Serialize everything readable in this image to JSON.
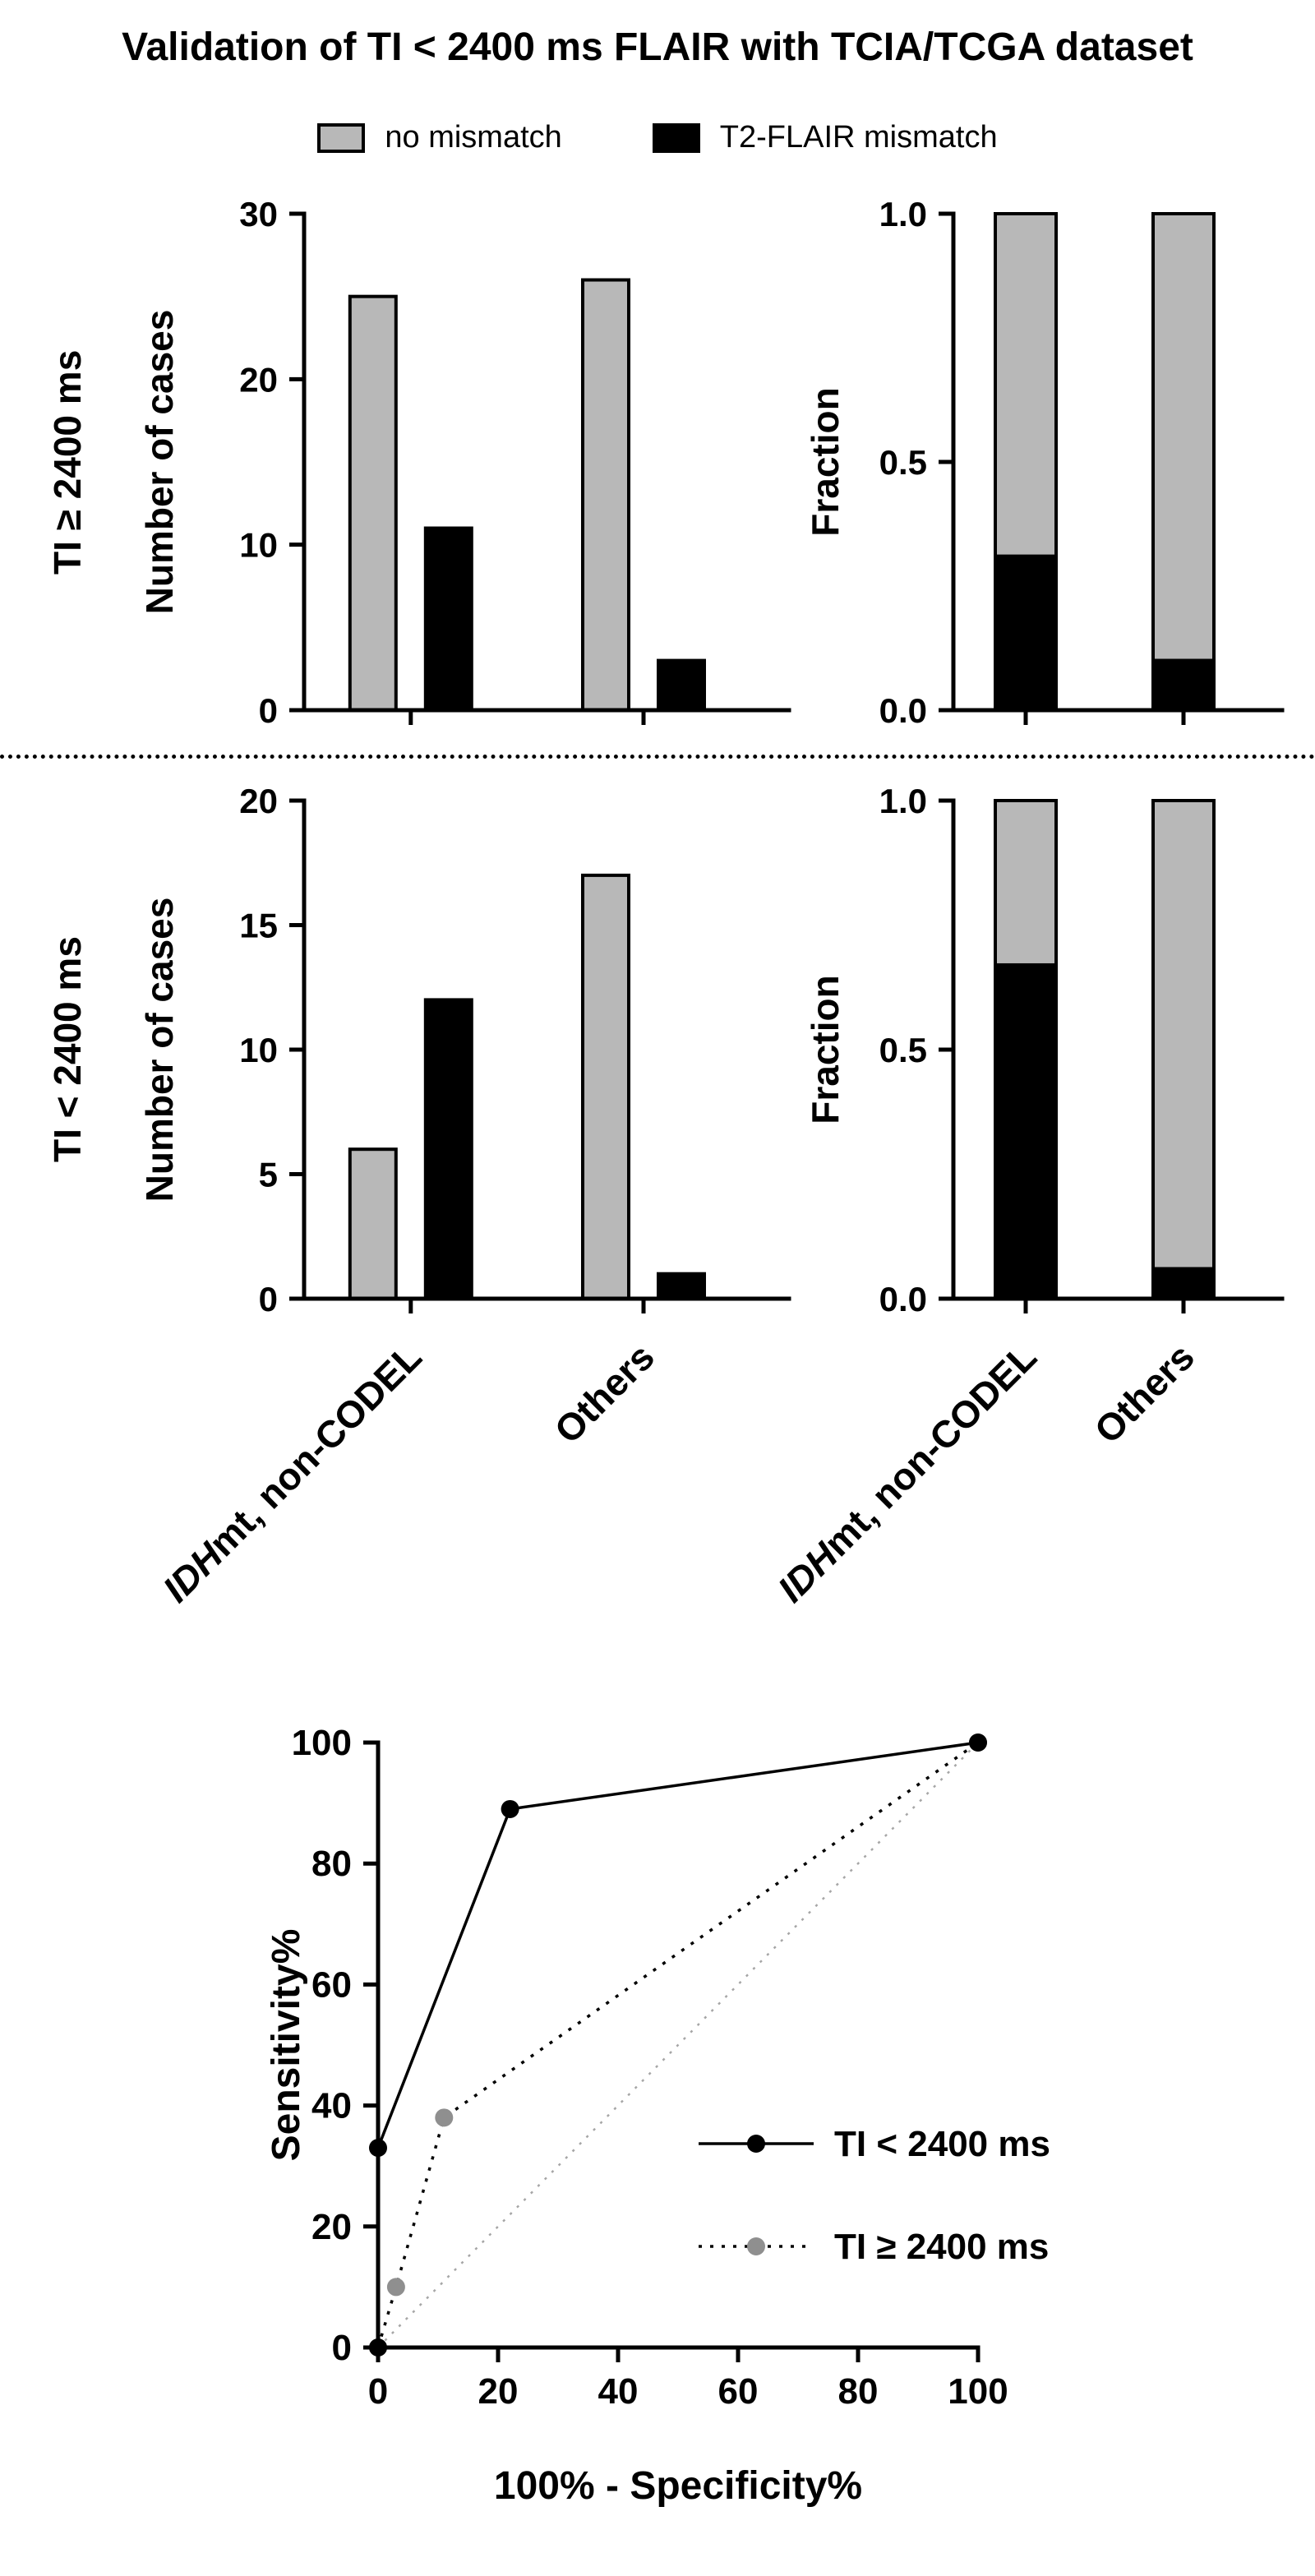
{
  "page": {
    "title": "Validation of TI < 2400 ms FLAIR with TCIA/TCGA dataset",
    "background": "#ffffff"
  },
  "legend": {
    "items": [
      {
        "label": "no mismatch",
        "color": "#b8b8b8"
      },
      {
        "label": "T2-FLAIR mismatch",
        "color": "#000000"
      }
    ]
  },
  "row_labels": [
    {
      "label": "TI ≥ 2400 ms"
    },
    {
      "label": "TI < 2400 ms"
    }
  ],
  "categories": {
    "labels": [
      "IDHmt, non-CODEL",
      "Others"
    ],
    "parts": [
      [
        {
          "text": "IDH",
          "italic": true
        },
        {
          "text": "mt, non-CODEL",
          "italic": false
        }
      ],
      [
        {
          "text": "Others",
          "italic": false
        }
      ]
    ]
  },
  "separator": {
    "style": "dotted"
  },
  "chart_data": [
    {
      "id": "counts-ti-ge-2400",
      "type": "bar",
      "group": "TI ≥ 2400 ms",
      "ylabel": "Number of cases",
      "ylim": [
        0,
        30
      ],
      "yticks": [
        0,
        10,
        20,
        30
      ],
      "categories": [
        "IDHmt, non-CODEL",
        "Others"
      ],
      "series": [
        {
          "name": "no mismatch",
          "color": "#b8b8b8",
          "values": [
            25,
            26
          ]
        },
        {
          "name": "T2-FLAIR mismatch",
          "color": "#000000",
          "values": [
            11,
            3
          ]
        }
      ],
      "grid": false,
      "legend_position": "top"
    },
    {
      "id": "fraction-ti-ge-2400",
      "type": "bar",
      "stacked": true,
      "group": "TI ≥ 2400 ms",
      "ylabel": "Fraction",
      "ylim": [
        0,
        1
      ],
      "yticks": [
        0,
        0.5,
        1
      ],
      "ytick_labels": [
        "0.0",
        "0.5",
        "1.0"
      ],
      "categories": [
        "IDHmt, non-CODEL",
        "Others"
      ],
      "series": [
        {
          "name": "T2-FLAIR mismatch",
          "color": "#000000",
          "values": [
            0.31,
            0.1
          ]
        },
        {
          "name": "no mismatch",
          "color": "#b8b8b8",
          "values": [
            0.69,
            0.9
          ]
        }
      ],
      "grid": false
    },
    {
      "id": "counts-ti-lt-2400",
      "type": "bar",
      "group": "TI < 2400 ms",
      "ylabel": "Number of cases",
      "ylim": [
        0,
        20
      ],
      "yticks": [
        0,
        5,
        10,
        15,
        20
      ],
      "categories": [
        "IDHmt, non-CODEL",
        "Others"
      ],
      "series": [
        {
          "name": "no mismatch",
          "color": "#b8b8b8",
          "values": [
            6,
            17
          ]
        },
        {
          "name": "T2-FLAIR mismatch",
          "color": "#000000",
          "values": [
            12,
            1
          ]
        }
      ],
      "grid": false
    },
    {
      "id": "fraction-ti-lt-2400",
      "type": "bar",
      "stacked": true,
      "group": "TI < 2400 ms",
      "ylabel": "Fraction",
      "ylim": [
        0,
        1
      ],
      "yticks": [
        0,
        0.5,
        1
      ],
      "ytick_labels": [
        "0.0",
        "0.5",
        "1.0"
      ],
      "categories": [
        "IDHmt, non-CODEL",
        "Others"
      ],
      "series": [
        {
          "name": "T2-FLAIR mismatch",
          "color": "#000000",
          "values": [
            0.67,
            0.06
          ]
        },
        {
          "name": "no mismatch",
          "color": "#b8b8b8",
          "values": [
            0.33,
            0.94
          ]
        }
      ],
      "grid": false
    },
    {
      "id": "roc",
      "type": "line",
      "xlabel": "100% - Specificity%",
      "ylabel": "Sensitivity%",
      "xlim": [
        0,
        100
      ],
      "ylim": [
        0,
        100
      ],
      "xticks": [
        0,
        20,
        40,
        60,
        80,
        100
      ],
      "yticks": [
        0,
        20,
        40,
        60,
        80,
        100
      ],
      "series": [
        {
          "name": "TI < 2400 ms",
          "color": "#000000",
          "line": "solid",
          "marker": "circle",
          "points": [
            [
              0,
              0
            ],
            [
              0,
              33
            ],
            [
              22,
              89
            ],
            [
              100,
              100
            ]
          ]
        },
        {
          "name": "TI ≥ 2400 ms",
          "color": "#8f8f8f",
          "line": "dotted",
          "marker": "circle",
          "points": [
            [
              0,
              0
            ],
            [
              3,
              10
            ],
            [
              11,
              38
            ],
            [
              100,
              100
            ]
          ]
        }
      ],
      "reference_line": {
        "style": "dotted",
        "color": "#a6a6a6",
        "points": [
          [
            0,
            0
          ],
          [
            100,
            100
          ]
        ]
      },
      "legend_position": "inside-right",
      "grid": false
    }
  ]
}
